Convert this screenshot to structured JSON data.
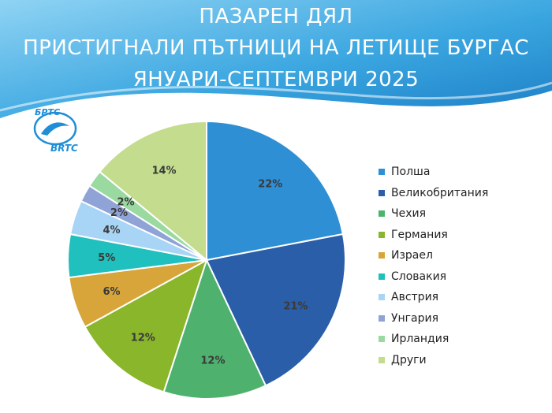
{
  "title": {
    "line1": "ПАЗАРЕН ДЯЛ",
    "line2": "ПРИСТИГНАЛИ ПЪТНИЦИ НА ЛЕТИЩЕ БУРГАС",
    "line3": "ЯНУАРИ-СЕПТЕМВРИ 2025"
  },
  "logo": {
    "top_text": "БРТС",
    "bottom_text": "BRTC"
  },
  "colors": {
    "header_light": "#8fd3f4",
    "header_mid": "#3aa6e0",
    "header_dark": "#1a7cc4",
    "wave": "#ffffff"
  },
  "chart_data": {
    "type": "pie",
    "categories": [
      "Полша",
      "Великобритания",
      "Чехия",
      "Германия",
      "Израел",
      "Словакия",
      "Австрия",
      "Унгария",
      "Ирландия",
      "Други"
    ],
    "values": [
      22,
      21,
      12,
      12,
      6,
      5,
      4,
      2,
      2,
      14
    ],
    "labels": [
      "22%",
      "21%",
      "12%",
      "12%",
      "6%",
      "5%",
      "4%",
      "2%",
      "2%",
      "14%"
    ],
    "colors": [
      "#2f8fd4",
      "#2a5ea8",
      "#4eb26e",
      "#8ab62b",
      "#d8a53a",
      "#1fc0bd",
      "#a8d4f5",
      "#8fa3d6",
      "#9ad9a0",
      "#c3dc8d"
    ],
    "legend_position": "right"
  }
}
